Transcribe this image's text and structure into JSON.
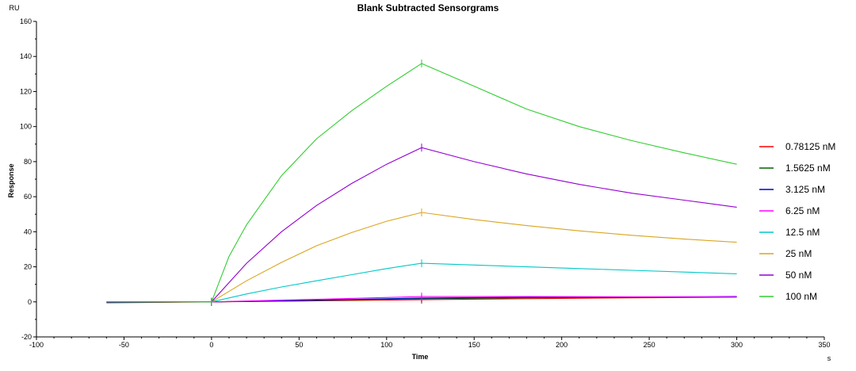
{
  "chart_data": {
    "type": "line",
    "title": "Blank Subtracted Sensorgrams",
    "xlabel": "Time",
    "ylabel": "Response",
    "x_unit": "s",
    "y_unit": "RU",
    "xlim": [
      -100,
      350
    ],
    "ylim": [
      -20,
      160
    ],
    "x_ticks": [
      -100,
      -50,
      0,
      50,
      100,
      150,
      200,
      250,
      300,
      350
    ],
    "y_ticks": [
      -20,
      0,
      20,
      40,
      60,
      80,
      100,
      120,
      140,
      160
    ],
    "grid": false,
    "legend_position": "right",
    "series": [
      {
        "name": "0.78125 nM",
        "color": "#ff0000",
        "x": [
          -60,
          0,
          60,
          120,
          180,
          240,
          300
        ],
        "y": [
          -0.5,
          0,
          0.6,
          1.2,
          1.8,
          2.3,
          2.6
        ]
      },
      {
        "name": "1.5625 nM",
        "color": "#006400",
        "x": [
          -60,
          0,
          60,
          120,
          180,
          240,
          300
        ],
        "y": [
          -0.3,
          0,
          0.8,
          1.8,
          2.3,
          2.6,
          2.8
        ]
      },
      {
        "name": "3.125 nM",
        "color": "#0000cd",
        "x": [
          -60,
          0,
          60,
          120,
          180,
          240,
          300
        ],
        "y": [
          -0.3,
          0,
          1.0,
          2.2,
          2.6,
          2.8,
          3.0
        ]
      },
      {
        "name": "6.25 nM",
        "color": "#ff00ff",
        "x": [
          -60,
          0,
          60,
          120,
          180,
          240,
          300
        ],
        "y": [
          0,
          0,
          1.5,
          3.0,
          3.0,
          2.9,
          2.8
        ]
      },
      {
        "name": "12.5 nM",
        "color": "#00c8c8",
        "x": [
          -60,
          0,
          20,
          40,
          60,
          80,
          100,
          120,
          150,
          180,
          210,
          240,
          270,
          300
        ],
        "y": [
          0,
          0,
          4.5,
          8.5,
          12.0,
          15.5,
          19.0,
          22.0,
          21.0,
          20.0,
          19.0,
          18.0,
          17.0,
          16.0
        ]
      },
      {
        "name": "25 nM",
        "color": "#daa520",
        "x": [
          -60,
          0,
          20,
          40,
          60,
          80,
          100,
          120,
          150,
          180,
          210,
          240,
          270,
          300
        ],
        "y": [
          0,
          0,
          12.0,
          22.5,
          32.0,
          39.5,
          46.0,
          51.0,
          47.0,
          43.5,
          40.5,
          38.0,
          35.8,
          34.0
        ]
      },
      {
        "name": "50 nM",
        "color": "#9400d3",
        "x": [
          -60,
          0,
          20,
          40,
          60,
          80,
          100,
          120,
          150,
          180,
          210,
          240,
          270,
          300
        ],
        "y": [
          0,
          0,
          22.0,
          40.0,
          55.0,
          67.5,
          78.5,
          88.0,
          80.0,
          73.0,
          67.0,
          62.0,
          58.0,
          54.0
        ]
      },
      {
        "name": "100 nM",
        "color": "#32cd32",
        "x": [
          -60,
          0,
          10,
          20,
          40,
          60,
          80,
          100,
          120,
          150,
          180,
          210,
          240,
          270,
          300
        ],
        "y": [
          0,
          0,
          26.0,
          44.0,
          72.0,
          93.0,
          109.0,
          123.0,
          136.0,
          123.0,
          110.0,
          100.0,
          92.0,
          85.0,
          78.5
        ]
      }
    ]
  }
}
